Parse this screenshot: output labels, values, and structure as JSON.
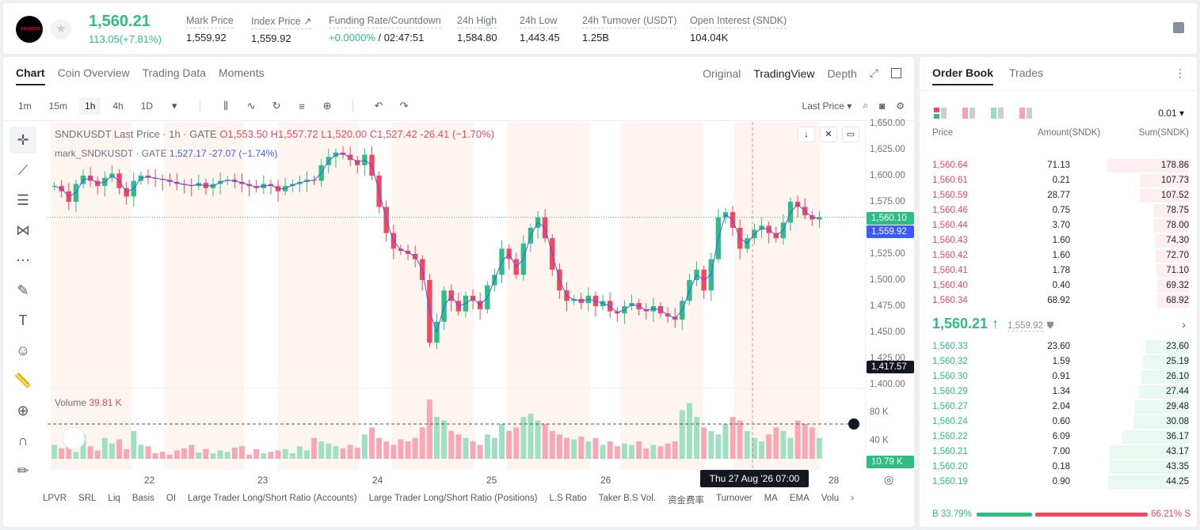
{
  "header": {
    "logo_text": "SANDBOX",
    "last_price": "1,560.21",
    "change": "113.05(+7.81%)",
    "stats": [
      {
        "label": "Mark Price",
        "value": "1,559.92"
      },
      {
        "label": "Index Price ↗",
        "value": "1,559.92"
      },
      {
        "label": "Funding Rate/Countdown",
        "value_green": "+0.0000%",
        "value": " / 02:47:51"
      },
      {
        "label": "24h High",
        "value": "1,584.80"
      },
      {
        "label": "24h Low",
        "value": "1,443.45"
      },
      {
        "label": "24h Turnover (USDT)",
        "value": "1.25B"
      },
      {
        "label": "Open Interest (SNDK)",
        "value": "104.04K"
      }
    ]
  },
  "chart_panel": {
    "tabs": [
      "Chart",
      "Coin Overview",
      "Trading Data",
      "Moments"
    ],
    "views": [
      "Original",
      "TradingView",
      "Depth"
    ],
    "timeframes": [
      "1m",
      "15m",
      "1h",
      "4h",
      "1D"
    ],
    "price_type": "Last Price",
    "legend": {
      "symbol": "SNDKUSDT Last Price · 1h · GATE",
      "o": "O1,553.50",
      "h": "H1,557.72",
      "l": "L1,520.00",
      "c": "C1,527.42",
      "chg": "-26.41 (−1.70%)",
      "mark": "mark_SNDKUSDT · GATE",
      "mark_vals": "1,527.17  -27.07 (−1.74%)"
    },
    "volume_label": "Volume",
    "volume_value": "39.81 K",
    "y_ticks": [
      "1,650.00",
      "1,625.00",
      "1,600.00",
      "1,575.00",
      "1,550.00",
      "1,525.00",
      "1,500.00",
      "1,475.00",
      "1,450.00",
      "1,425.00",
      "1,400.00"
    ],
    "vol_ticks": [
      "80 K",
      "40 K"
    ],
    "tags": {
      "last": "1,560.10",
      "mark": "1,559.92",
      "cross": "1,417.57",
      "vol": "10.79 K"
    },
    "x_ticks": [
      "22",
      "23",
      "24",
      "25",
      "26",
      "28"
    ],
    "crosshair_time": "Thu 27 Aug '26   07:00",
    "indicators": [
      "LPVR",
      "SRL",
      "Liq",
      "Basis",
      "OI",
      "Large Trader Long/Short Ratio (Accounts)",
      "Large Trader Long/Short Ratio (Positions)",
      "L.S Ratio",
      "Taker B.S Vol.",
      "资金费率",
      "Turnover",
      "MA",
      "EMA",
      "Volu"
    ]
  },
  "chart_data": {
    "type": "candlestick",
    "title": "SNDKUSDT Last Price · 1h · GATE",
    "ylim": [
      1400,
      1650
    ],
    "x_ticks": [
      "22",
      "23",
      "24",
      "25",
      "26",
      "28"
    ],
    "close_path": [
      1590,
      1585,
      1575,
      1592,
      1600,
      1595,
      1590,
      1598,
      1602,
      1588,
      1580,
      1595,
      1600,
      1598,
      1597,
      1596,
      1594,
      1592,
      1591,
      1590,
      1593,
      1588,
      1592,
      1595,
      1596,
      1594,
      1592,
      1590,
      1588,
      1592,
      1590,
      1585,
      1590,
      1592,
      1594,
      1596,
      1595,
      1610,
      1618,
      1622,
      1620,
      1615,
      1610,
      1620,
      1600,
      1570,
      1545,
      1530,
      1528,
      1525,
      1520,
      1500,
      1440,
      1460,
      1490,
      1480,
      1470,
      1485,
      1480,
      1472,
      1495,
      1505,
      1530,
      1520,
      1505,
      1535,
      1550,
      1560,
      1540,
      1510,
      1490,
      1480,
      1482,
      1478,
      1485,
      1475,
      1480,
      1470,
      1468,
      1475,
      1478,
      1472,
      1470,
      1475,
      1468,
      1465,
      1462,
      1480,
      1500,
      1510,
      1490,
      1520,
      1560,
      1565,
      1550,
      1530,
      1540,
      1548,
      1552,
      1545,
      1540,
      1555,
      1575,
      1570,
      1562,
      1558,
      1560
    ],
    "volume_path": [
      20,
      15,
      25,
      10,
      35,
      18,
      12,
      30,
      22,
      28,
      14,
      40,
      20,
      18,
      8,
      10,
      6,
      12,
      15,
      20,
      9,
      14,
      8,
      12,
      10,
      16,
      18,
      6,
      14,
      8,
      10,
      12,
      14,
      8,
      18,
      12,
      30,
      25,
      22,
      18,
      15,
      20,
      16,
      35,
      45,
      30,
      25,
      20,
      28,
      25,
      30,
      45,
      85,
      60,
      55,
      40,
      35,
      30,
      25,
      20,
      35,
      30,
      50,
      40,
      45,
      60,
      65,
      55,
      50,
      40,
      35,
      30,
      28,
      32,
      25,
      30,
      20,
      25,
      18,
      22,
      20,
      25,
      15,
      20,
      18,
      22,
      25,
      70,
      80,
      60,
      45,
      40,
      35,
      50,
      60,
      55,
      40,
      30,
      25,
      35,
      45,
      40,
      30,
      55,
      50,
      45,
      30
    ]
  },
  "order_book": {
    "tabs": [
      "Order Book",
      "Trades"
    ],
    "precision": "0.01",
    "headers": [
      "Price",
      "Amount(SNDK)",
      "Sum(SNDK)"
    ],
    "asks": [
      {
        "price": "1,560.64",
        "amount": "71.13",
        "sum": "178.86"
      },
      {
        "price": "1,560.61",
        "amount": "0.21",
        "sum": "107.73"
      },
      {
        "price": "1,560.59",
        "amount": "28.77",
        "sum": "107.52"
      },
      {
        "price": "1,560.46",
        "amount": "0.75",
        "sum": "78.75"
      },
      {
        "price": "1,560.44",
        "amount": "3.70",
        "sum": "78.00"
      },
      {
        "price": "1,560.43",
        "amount": "1.60",
        "sum": "74.30"
      },
      {
        "price": "1,560.42",
        "amount": "1.60",
        "sum": "72.70"
      },
      {
        "price": "1,560.41",
        "amount": "1.78",
        "sum": "71.10"
      },
      {
        "price": "1,560.40",
        "amount": "0.40",
        "sum": "69.32"
      },
      {
        "price": "1,560.34",
        "amount": "68.92",
        "sum": "68.92"
      }
    ],
    "mid_price": "1,560.21 ↑",
    "mid_mark": "1,559.92",
    "bids": [
      {
        "price": "1,560.33",
        "amount": "23.60",
        "sum": "23.60"
      },
      {
        "price": "1,560.32",
        "amount": "1.59",
        "sum": "25.19"
      },
      {
        "price": "1,560.30",
        "amount": "0.91",
        "sum": "26.10"
      },
      {
        "price": "1,560.29",
        "amount": "1.34",
        "sum": "27.44"
      },
      {
        "price": "1,560.27",
        "amount": "2.04",
        "sum": "29.48"
      },
      {
        "price": "1,560.24",
        "amount": "0.60",
        "sum": "30.08"
      },
      {
        "price": "1,560.22",
        "amount": "6.09",
        "sum": "36.17"
      },
      {
        "price": "1,560.21",
        "amount": "7.00",
        "sum": "43.17"
      },
      {
        "price": "1,560.20",
        "amount": "0.18",
        "sum": "43.35"
      },
      {
        "price": "1,560.19",
        "amount": "0.90",
        "sum": "44.25"
      }
    ],
    "buy_ratio": "B 33.79%",
    "sell_ratio": "66.21% S"
  },
  "colors": {
    "up": "#2ebd85",
    "down": "#f6465d",
    "accent": "#3d5afe"
  }
}
